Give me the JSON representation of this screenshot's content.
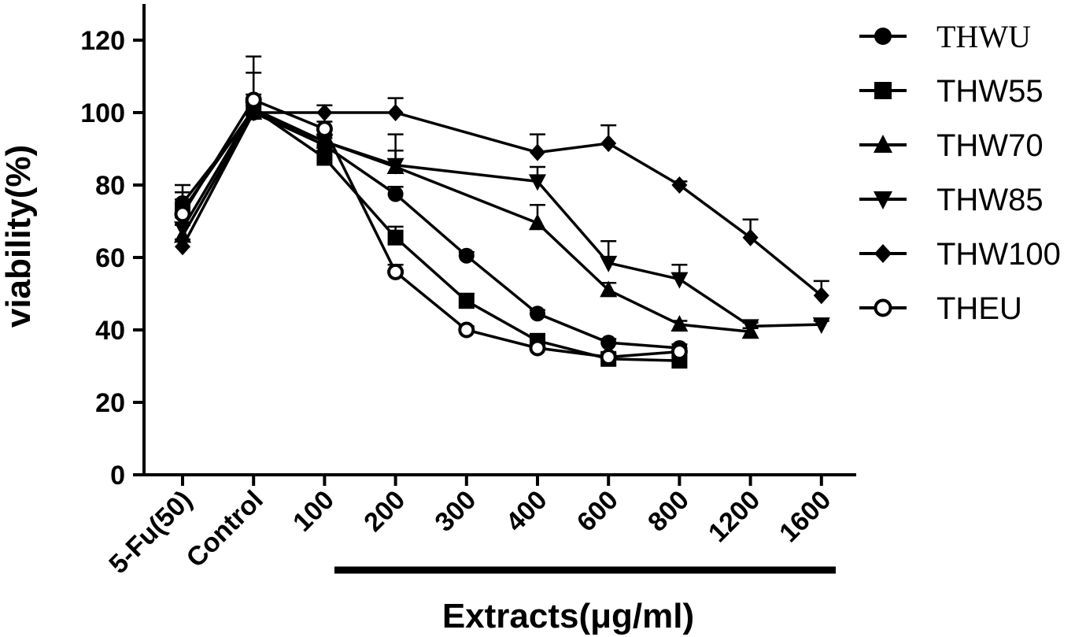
{
  "chart_data": {
    "type": "line",
    "title": "",
    "xlabel": "Extracts(μg/ml)",
    "ylabel": "viability(%)",
    "categories": [
      "5-Fu(50)",
      "Control",
      "100",
      "200",
      "300",
      "400",
      "600",
      "800",
      "1200",
      "1600"
    ],
    "yticks": [
      0,
      20,
      40,
      60,
      80,
      100,
      120
    ],
    "ylim": [
      0,
      130
    ],
    "grid": false,
    "legend_position": "right",
    "series": [
      {
        "name": "THWU",
        "marker": "circle-filled",
        "values": [
          75,
          100,
          91,
          77.5,
          60.5,
          44.5,
          36.5,
          35,
          null,
          null
        ],
        "errors": [
          5,
          2,
          2,
          2,
          1,
          1,
          1,
          1,
          null,
          null
        ]
      },
      {
        "name": "THW55",
        "marker": "square",
        "values": [
          73,
          101,
          87.5,
          65.5,
          48,
          37,
          32,
          31.5,
          null,
          null
        ],
        "errors": [
          5,
          3,
          2,
          3,
          2,
          1,
          1,
          1,
          null,
          null
        ]
      },
      {
        "name": "THW70",
        "marker": "triangle-up",
        "values": [
          66,
          100,
          92,
          85,
          null,
          69.5,
          51,
          41.5,
          39.5,
          null
        ],
        "errors": [
          3,
          5,
          2,
          9,
          null,
          5,
          2,
          1,
          1,
          null
        ]
      },
      {
        "name": "THW85",
        "marker": "triangle-down",
        "values": [
          68,
          101,
          92,
          85.5,
          null,
          81,
          58.5,
          54,
          41,
          41.5
        ],
        "errors": [
          4,
          10,
          2,
          4,
          null,
          4,
          6,
          4,
          1,
          1
        ]
      },
      {
        "name": "THW100",
        "marker": "diamond",
        "values": [
          63,
          100,
          100,
          100,
          null,
          89,
          91.5,
          80,
          65.5,
          49.5
        ],
        "errors": [
          2,
          4,
          2,
          4,
          null,
          5,
          5,
          1,
          5,
          4
        ]
      },
      {
        "name": "THEU",
        "marker": "circle-open",
        "values": [
          72,
          103.5,
          95.5,
          56,
          40,
          35,
          32.5,
          34,
          null,
          null
        ],
        "errors": [
          4,
          12,
          2,
          2,
          1,
          1,
          1,
          1,
          null,
          null
        ]
      }
    ]
  }
}
